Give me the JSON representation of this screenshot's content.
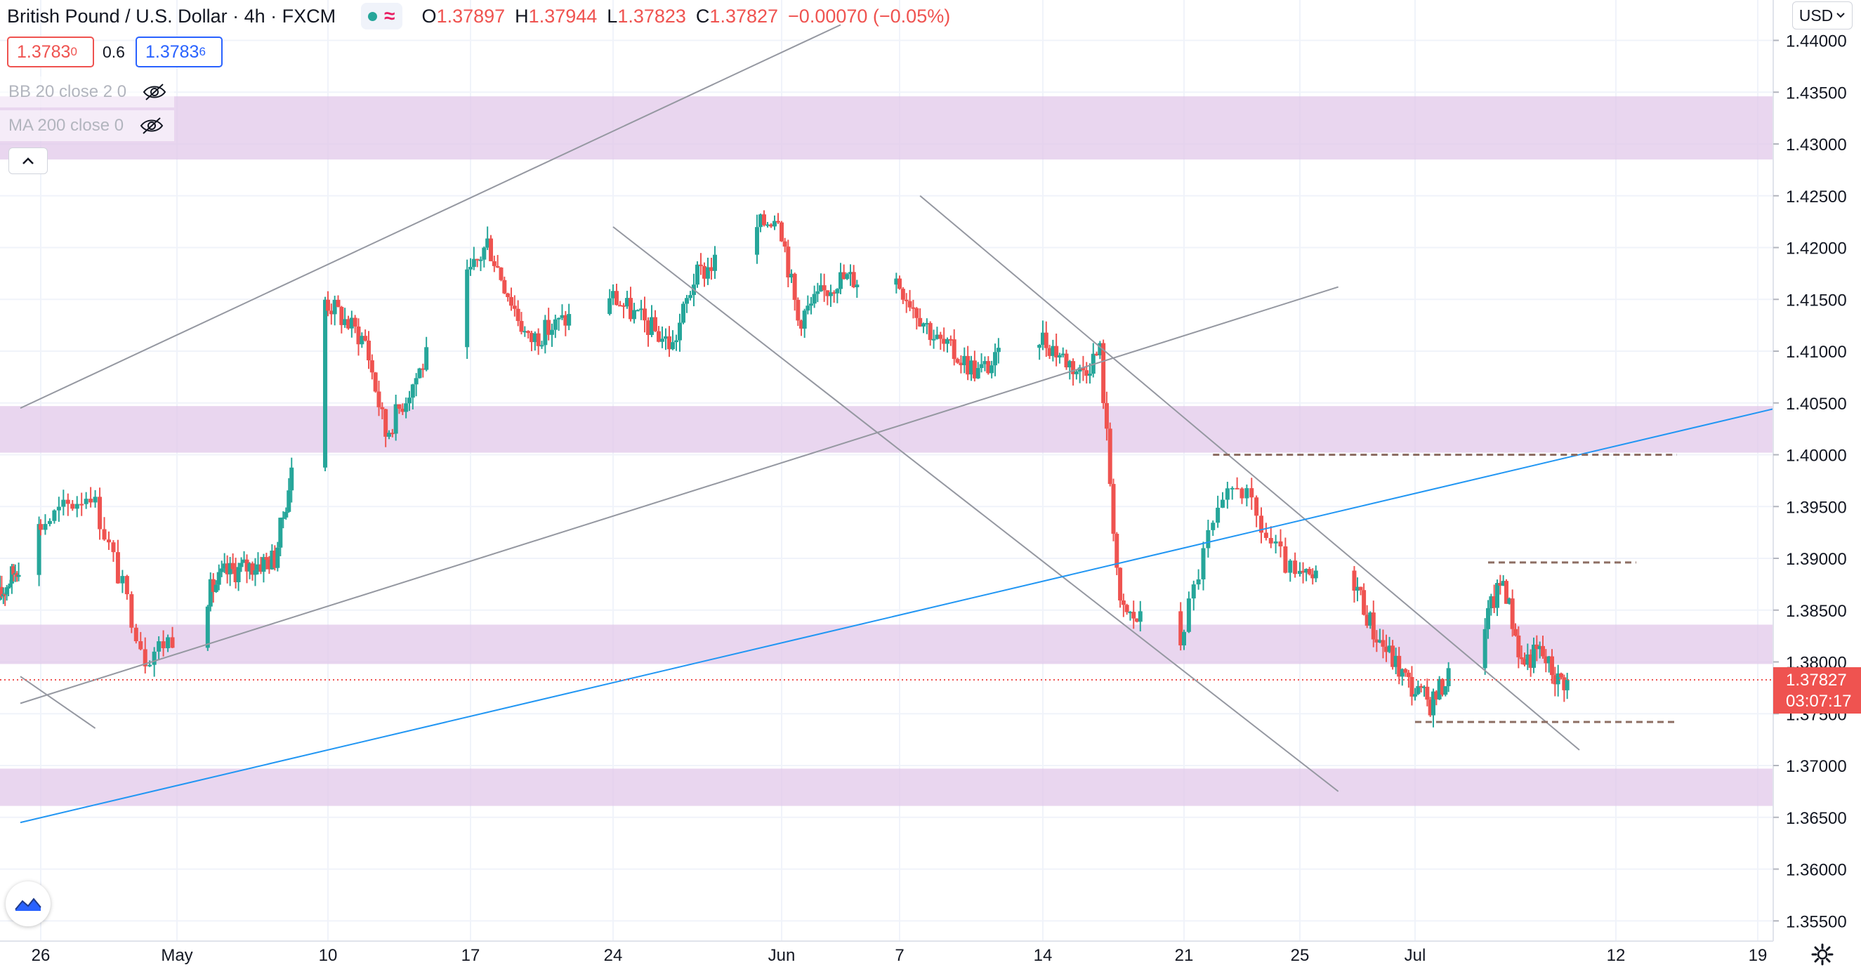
{
  "header": {
    "symbol": "British Pound / U.S. Dollar",
    "interval": "4h",
    "exchange": "FXCM",
    "status_icon": "market-open-dot",
    "ohlc": [
      {
        "k": "O",
        "v": "1.37897"
      },
      {
        "k": "H",
        "v": "1.37944"
      },
      {
        "k": "L",
        "v": "1.37823"
      },
      {
        "k": "C",
        "v": "1.37827"
      },
      {
        "k": "",
        "v": "−0.00070 (−0.05%)"
      }
    ],
    "sell_price_main": "1.3783",
    "sell_price_pip": "0",
    "spread": "0.6",
    "buy_price_main": "1.3783",
    "buy_price_pip": "6"
  },
  "indicators": [
    {
      "label": "BB 20 close 2 0",
      "icon": "eye-off-icon"
    },
    {
      "label": "MA 200 close 0",
      "icon": "eye-off-icon"
    }
  ],
  "controls": {
    "collapse_icon": "chevron-up-icon",
    "currency_label": "USD",
    "currency_icon": "chevron-down-icon",
    "settings_icon": "gear-icon",
    "logo_icon": "tradingview-logo-icon"
  },
  "colors": {
    "up": "#26a69a",
    "down": "#ef5350",
    "zone": "#e1c8ea",
    "trendline": "#9598a1",
    "blue_line": "#2196f3",
    "dashed": "#8d6e63"
  },
  "chart_data": {
    "type": "candlestick",
    "y_ticks": [
      "1.44000",
      "1.43500",
      "1.43000",
      "1.42500",
      "1.42000",
      "1.41500",
      "1.41000",
      "1.40500",
      "1.40000",
      "1.39500",
      "1.39000",
      "1.38500",
      "1.38000",
      "1.37500",
      "1.37000",
      "1.36500",
      "1.36000",
      "1.35500"
    ],
    "y_range": [
      1.3548,
      1.4422
    ],
    "x_ticks": [
      {
        "label": "26",
        "date": "2021-04-26"
      },
      {
        "label": "May",
        "date": "2021-05-01"
      },
      {
        "label": "10",
        "date": "2021-05-10"
      },
      {
        "label": "17",
        "date": "2021-05-17"
      },
      {
        "label": "24",
        "date": "2021-05-24"
      },
      {
        "label": "Jun",
        "date": "2021-06-01"
      },
      {
        "label": "7",
        "date": "2021-06-07"
      },
      {
        "label": "14",
        "date": "2021-06-14"
      },
      {
        "label": "21",
        "date": "2021-06-21"
      },
      {
        "label": "25",
        "date": "2021-06-25"
      },
      {
        "label": "Jul",
        "date": "2021-07-01"
      },
      {
        "label": "12",
        "date": "2021-07-12"
      },
      {
        "label": "19",
        "date": "2021-07-19"
      }
    ],
    "last_price": "1.37827",
    "countdown": "03:07:17",
    "key_points": [
      {
        "date": "2021-04-22",
        "price": 1.386
      },
      {
        "date": "2021-04-28",
        "price": 1.3965
      },
      {
        "date": "2021-04-30",
        "price": 1.3805
      },
      {
        "date": "2021-05-04",
        "price": 1.3885
      },
      {
        "date": "2021-05-07",
        "price": 1.39
      },
      {
        "date": "2021-05-10",
        "price": 1.415
      },
      {
        "date": "2021-05-12",
        "price": 1.411
      },
      {
        "date": "2021-05-13",
        "price": 1.402
      },
      {
        "date": "2021-05-18",
        "price": 1.4205
      },
      {
        "date": "2021-05-20",
        "price": 1.411
      },
      {
        "date": "2021-05-24",
        "price": 1.4155
      },
      {
        "date": "2021-05-27",
        "price": 1.4105
      },
      {
        "date": "2021-05-28",
        "price": 1.417
      },
      {
        "date": "2021-06-01",
        "price": 1.4235
      },
      {
        "date": "2021-06-02",
        "price": 1.413
      },
      {
        "date": "2021-06-04",
        "price": 1.417
      },
      {
        "date": "2021-06-07",
        "price": 1.417
      },
      {
        "date": "2021-06-09",
        "price": 1.411
      },
      {
        "date": "2021-06-11",
        "price": 1.408
      },
      {
        "date": "2021-06-14",
        "price": 1.4115
      },
      {
        "date": "2021-06-16",
        "price": 1.408
      },
      {
        "date": "2021-06-17",
        "price": 1.41
      },
      {
        "date": "2021-06-18",
        "price": 1.385
      },
      {
        "date": "2021-06-21",
        "price": 1.382
      },
      {
        "date": "2021-06-22",
        "price": 1.392
      },
      {
        "date": "2021-06-23",
        "price": 1.3975
      },
      {
        "date": "2021-06-24",
        "price": 1.392
      },
      {
        "date": "2021-06-25",
        "price": 1.388
      },
      {
        "date": "2021-06-28",
        "price": 1.388
      },
      {
        "date": "2021-06-29",
        "price": 1.383
      },
      {
        "date": "2021-07-01",
        "price": 1.3775
      },
      {
        "date": "2021-07-02",
        "price": 1.376
      },
      {
        "date": "2021-07-05",
        "price": 1.384
      },
      {
        "date": "2021-07-06",
        "price": 1.388
      },
      {
        "date": "2021-07-07",
        "price": 1.38
      },
      {
        "date": "2021-07-08",
        "price": 1.381
      },
      {
        "date": "2021-07-09",
        "price": 1.3783
      }
    ],
    "zones": [
      {
        "from": 1.4285,
        "to": 1.4346
      },
      {
        "from": 1.4002,
        "to": 1.4047
      },
      {
        "from": 1.3798,
        "to": 1.3836
      },
      {
        "from": 1.3661,
        "to": 1.3697
      }
    ],
    "trendlines": [
      {
        "p1": [
          "2021-04-24",
          1.4045
        ],
        "p2": [
          "2021-06-04",
          1.4415
        ],
        "color": "trendline"
      },
      {
        "p1": [
          "2021-04-24",
          1.376
        ],
        "p2": [
          "2021-06-27",
          1.4162
        ],
        "color": "trendline"
      },
      {
        "p1": [
          "2021-05-24",
          1.422
        ],
        "p2": [
          "2021-06-27",
          1.3675
        ],
        "color": "trendline"
      },
      {
        "p1": [
          "2021-06-08",
          1.425
        ],
        "p2": [
          "2021-07-10",
          1.3715
        ],
        "color": "trendline"
      },
      {
        "p1": [
          "2021-04-24",
          1.3786
        ],
        "p2": [
          "2021-04-28",
          1.3736
        ],
        "color": "trendline"
      },
      {
        "p1": [
          "2021-04-24",
          1.3645
        ],
        "p2": [
          "2021-07-21",
          1.405
        ],
        "color": "blue_line"
      }
    ],
    "levels": [
      {
        "price": 1.4,
        "from": "2021-06-22",
        "to": "2021-07-15"
      },
      {
        "price": 1.3896,
        "from": "2021-07-05",
        "to": "2021-07-13"
      },
      {
        "price": 1.3742,
        "from": "2021-07-01",
        "to": "2021-07-15"
      }
    ]
  }
}
